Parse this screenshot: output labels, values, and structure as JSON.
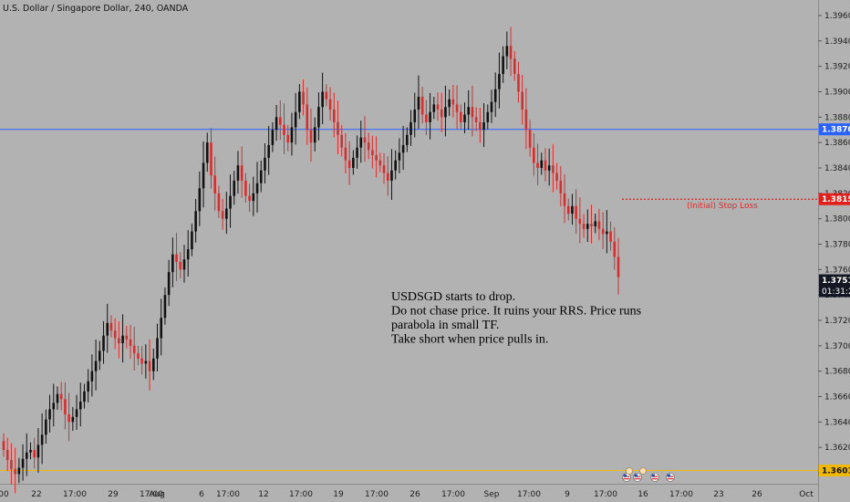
{
  "chart_data": {
    "type": "candlestick",
    "title": "U.S. Dollar / Singapore Dollar, 240, OANDA",
    "ylim": [
      1.359,
      1.397
    ],
    "y_ticks": [
      "1.39600",
      "1.39400",
      "1.39200",
      "1.39000",
      "1.38800",
      "1.38600",
      "1.38400",
      "1.38200",
      "1.38000",
      "1.37800",
      "1.37600",
      "1.37400",
      "1.37200",
      "1.37000",
      "1.36800",
      "1.36600",
      "1.36400",
      "1.36200",
      "1.36000"
    ],
    "x_ticks": [
      "00",
      "22",
      "17:00",
      "29",
      "17:00",
      "Aug",
      "6",
      "17:00",
      "12",
      "17:00",
      "19",
      "17:00",
      "26",
      "17:00",
      "Sep",
      "17:00",
      "9",
      "17:00",
      "16",
      "17:00",
      "23",
      "26",
      "Oct"
    ],
    "closes": [
      1.3618,
      1.361,
      1.3603,
      1.3599,
      1.3604,
      1.3611,
      1.3616,
      1.3618,
      1.3612,
      1.3622,
      1.363,
      1.3642,
      1.365,
      1.3655,
      1.3662,
      1.3658,
      1.3646,
      1.364,
      1.3644,
      1.365,
      1.3656,
      1.3664,
      1.3672,
      1.368,
      1.3688,
      1.3696,
      1.3708,
      1.3718,
      1.3712,
      1.3706,
      1.3702,
      1.3708,
      1.3705,
      1.37,
      1.3694,
      1.369,
      1.3686,
      1.3688,
      1.368,
      1.369,
      1.3706,
      1.3722,
      1.374,
      1.3758,
      1.3772,
      1.3766,
      1.376,
      1.3768,
      1.3776,
      1.379,
      1.3806,
      1.3824,
      1.3844,
      1.386,
      1.3834,
      1.382,
      1.3806,
      1.38,
      1.3808,
      1.3818,
      1.383,
      1.3842,
      1.383,
      1.3818,
      1.3814,
      1.382,
      1.3828,
      1.3838,
      1.3848,
      1.3858,
      1.387,
      1.388,
      1.3874,
      1.3866,
      1.386,
      1.3872,
      1.3884,
      1.39,
      1.389,
      1.387,
      1.386,
      1.3872,
      1.3888,
      1.39,
      1.3894,
      1.3886,
      1.3876,
      1.3866,
      1.3856,
      1.3846,
      1.384,
      1.3848,
      1.3856,
      1.3864,
      1.386,
      1.3854,
      1.385,
      1.3846,
      1.3842,
      1.3836,
      1.383,
      1.3838,
      1.3846,
      1.3852,
      1.3858,
      1.3866,
      1.3876,
      1.3886,
      1.3896,
      1.3882,
      1.3876,
      1.3884,
      1.389,
      1.3886,
      1.388,
      1.3888,
      1.3894,
      1.389,
      1.3884,
      1.3876,
      1.3882,
      1.3888,
      1.388,
      1.3876,
      1.387,
      1.3876,
      1.3884,
      1.3892,
      1.3902,
      1.3914,
      1.3928,
      1.3936,
      1.3926,
      1.3914,
      1.39,
      1.3886,
      1.387,
      1.3856,
      1.3844,
      1.384,
      1.3846,
      1.3838,
      1.3842,
      1.3836,
      1.383,
      1.382,
      1.381,
      1.3804,
      1.381,
      1.38,
      1.3796,
      1.3792,
      1.3796,
      1.3794,
      1.3798,
      1.3792,
      1.3788,
      1.379,
      1.3782,
      1.377,
      1.3754
    ],
    "series": [
      {
        "name": "",
        "values": []
      }
    ],
    "price_labels": [
      {
        "value": 1.37516,
        "text": "1.37516",
        "sub": "01:31:27",
        "color": "#131722"
      },
      {
        "value": 1.38704,
        "text": "1.38704",
        "color": "#2962ff"
      },
      {
        "value": 1.38154,
        "text": "1.38154",
        "color": "#e0201b"
      },
      {
        "value": 1.36018,
        "text": "1.36018",
        "color": "#f0b800"
      }
    ],
    "hlines": [
      {
        "value": 1.38704,
        "color": "#2962ff"
      },
      {
        "value": 1.36018,
        "color": "#f0b800"
      }
    ],
    "stop_loss": {
      "value": 1.38154,
      "label": "(Initial) Stop Loss",
      "color": "#e0201b"
    },
    "annotation": [
      "USDSGD starts to drop.",
      "Do not chase price.  It ruins your RRS. Price runs",
      "parabola in small TF.",
      "Take short when price pulls in."
    ],
    "colors": {
      "up": "#111111",
      "down": "#d32f2f",
      "background": "#b2b2b2"
    }
  }
}
